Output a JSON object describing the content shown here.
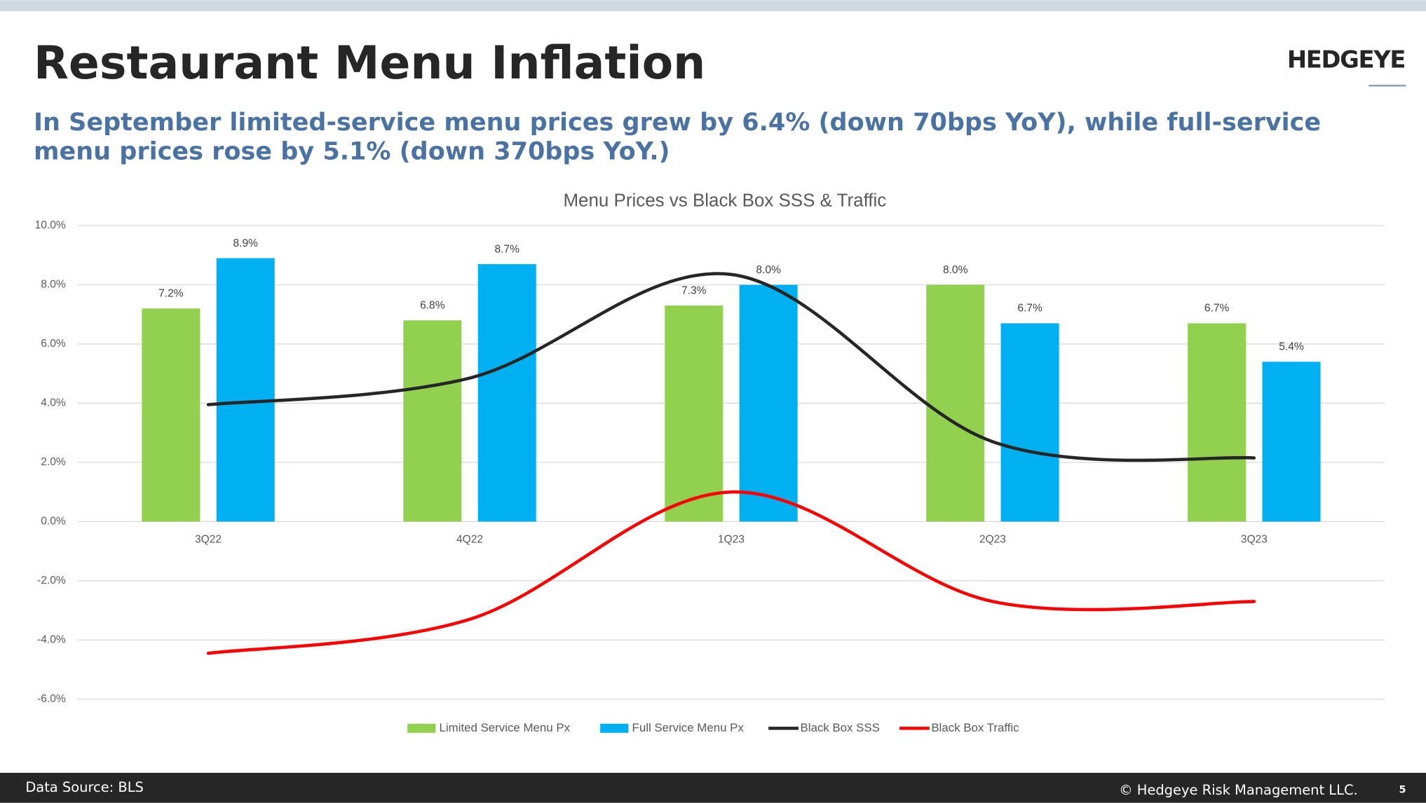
{
  "page": {
    "title": "Restaurant Menu Inflation",
    "logo": "HEDGEYE",
    "subtitle": [
      "In September limited-service menu prices grew by 6.4% (down 70bps YoY), while full-service",
      "menu prices rose by 5.1% (down 370bps YoY.)"
    ],
    "source": "Data Source: BLS",
    "copyright": "© Hedgeye Risk Management LLC.",
    "page_number": "5"
  },
  "chart_data": {
    "type": "bar",
    "title": "Menu Prices vs Black Box SSS & Traffic",
    "categories": [
      "3Q22",
      "4Q22",
      "1Q23",
      "2Q23",
      "3Q23"
    ],
    "series": [
      {
        "name": "Limited Service Menu Px",
        "type": "bar",
        "color": "#92d050",
        "values": [
          7.2,
          6.8,
          7.3,
          8.0,
          6.7
        ],
        "value_labels": [
          "7.2%",
          "6.8%",
          "7.3%",
          "8.0%",
          "6.7%"
        ]
      },
      {
        "name": "Full Service Menu Px",
        "type": "bar",
        "color": "#00b0f0",
        "values": [
          8.9,
          8.7,
          8.0,
          6.7,
          5.4
        ],
        "value_labels": [
          "8.9%",
          "8.7%",
          "8.0%",
          "6.7%",
          "5.4%"
        ]
      },
      {
        "name": "Black Box SSS",
        "type": "line",
        "color": "#262626",
        "values": [
          3.95,
          4.85,
          8.35,
          2.7,
          2.15
        ]
      },
      {
        "name": "Black Box Traffic",
        "type": "line",
        "color": "#ff0000",
        "values": [
          -4.45,
          -3.3,
          1.0,
          -2.7,
          -2.7
        ]
      }
    ],
    "ylim": [
      -6,
      10
    ],
    "yticks": [
      {
        "value": -6,
        "label": "-6.0%"
      },
      {
        "value": -4,
        "label": "-4.0%"
      },
      {
        "value": -2,
        "label": "-2.0%"
      },
      {
        "value": 0,
        "label": "0.0%"
      },
      {
        "value": 2,
        "label": "2.0%"
      },
      {
        "value": 4,
        "label": "4.0%"
      },
      {
        "value": 6,
        "label": "6.0%"
      },
      {
        "value": 8,
        "label": "8.0%"
      },
      {
        "value": 10,
        "label": "10.0%"
      }
    ],
    "grid": true,
    "legend": "bottom"
  }
}
